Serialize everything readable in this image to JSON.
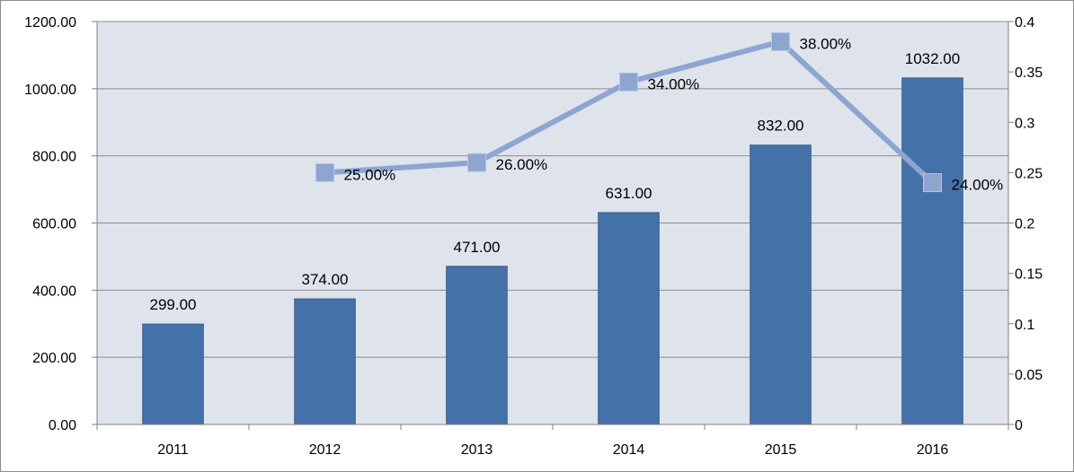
{
  "chart_data": {
    "type": "bar",
    "categories": [
      "2011",
      "2012",
      "2013",
      "2014",
      "2015",
      "2016"
    ],
    "series": [
      {
        "type": "bar",
        "axis": "left",
        "color": "#4471a8",
        "values": [
          299.0,
          374.0,
          471.0,
          631.0,
          832.0,
          1032.0
        ],
        "labels": [
          "299.00",
          "374.00",
          "471.00",
          "631.00",
          "832.00",
          "1032.00"
        ]
      },
      {
        "type": "line",
        "axis": "right",
        "color": "#8ea5d0",
        "marker": "square",
        "values": [
          null,
          0.25,
          0.26,
          0.34,
          0.38,
          0.24
        ],
        "labels": [
          "",
          "25.00%",
          "26.00%",
          "34.00%",
          "38.00%",
          "24.00%"
        ]
      }
    ],
    "y_left": {
      "range": [
        0,
        1200
      ],
      "ticks": [
        "0.00",
        "200.00",
        "400.00",
        "600.00",
        "800.00",
        "1000.00",
        "1200.00"
      ]
    },
    "y_right": {
      "range": [
        0,
        0.4
      ],
      "ticks": [
        "0",
        "0.05",
        "0.1",
        "0.15",
        "0.2",
        "0.25",
        "0.3",
        "0.35",
        "0.4"
      ]
    },
    "grid": true,
    "plot_background": "#dfe3ec",
    "legend": "none"
  }
}
